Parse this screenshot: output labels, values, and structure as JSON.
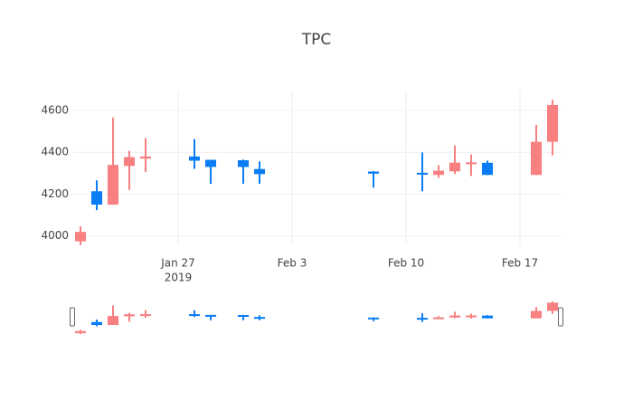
{
  "chart_data": {
    "type": "candlestick",
    "title": "TPC",
    "x": [
      "2019-01-21",
      "2019-01-22",
      "2019-01-23",
      "2019-01-24",
      "2019-01-25",
      "2019-01-28",
      "2019-01-29",
      "2019-01-31",
      "2019-02-01",
      "2019-02-08",
      "2019-02-11",
      "2019-02-12",
      "2019-02-13",
      "2019-02-14",
      "2019-02-15",
      "2019-02-18",
      "2019-02-19"
    ],
    "open": [
      3975,
      4214,
      4150,
      4335,
      4370,
      4380,
      4364,
      4362,
      4320,
      4308,
      4302,
      4292,
      4309,
      4345,
      4350,
      4292,
      4450
    ],
    "high": [
      4047,
      4266,
      4566,
      4407,
      4467,
      4463,
      4364,
      4365,
      4356,
      4310,
      4399,
      4339,
      4433,
      4390,
      4360,
      4531,
      4651
    ],
    "low": [
      3957,
      4124,
      4150,
      4220,
      4305,
      4321,
      4249,
      4250,
      4250,
      4231,
      4214,
      4279,
      4296,
      4287,
      4291,
      4291,
      4386
    ],
    "close": [
      4020,
      4150,
      4340,
      4377,
      4380,
      4360,
      4330,
      4330,
      4296,
      4298,
      4295,
      4312,
      4351,
      4352,
      4292,
      4450,
      4626
    ],
    "increasing_color": "#f88080",
    "decreasing_color": "#0a7cf5",
    "xlim": [
      "2019-01-20 12:00",
      "2019-02-19 12:00"
    ],
    "xticks": [
      {
        "value": "2019-01-27",
        "label": "Jan 27"
      },
      {
        "value": "2019-02-03",
        "label": "Feb 3"
      },
      {
        "value": "2019-02-10",
        "label": "Feb 10"
      },
      {
        "value": "2019-02-17",
        "label": "Feb 17"
      }
    ],
    "year_label": "2019",
    "ylim": [
      3960,
      4695
    ],
    "yticks": [
      4000,
      4200,
      4400,
      4600
    ],
    "grid": true,
    "rangeslider": true
  }
}
